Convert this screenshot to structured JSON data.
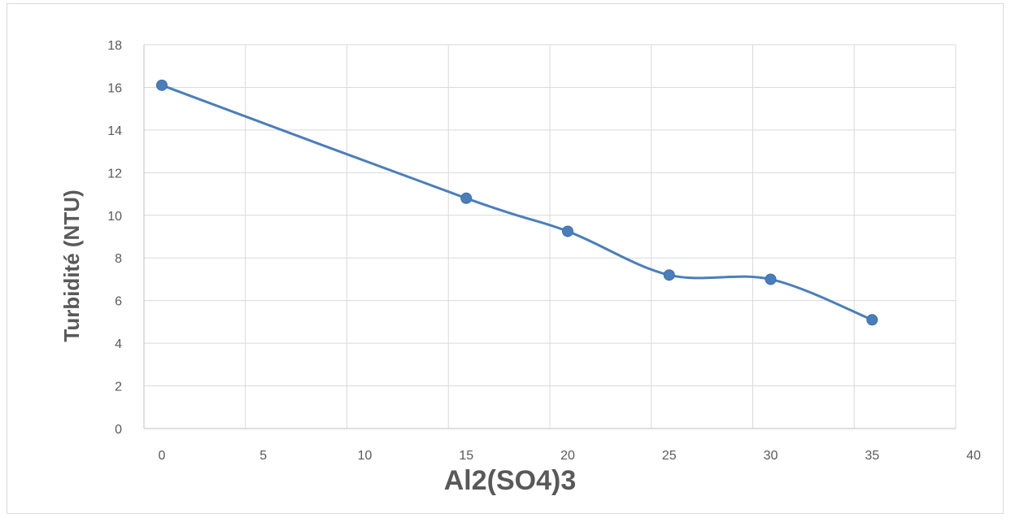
{
  "chart_data": {
    "type": "line",
    "title": "",
    "xlabel": "Al2(SO4)3",
    "ylabel": "Turbidité (NTU)",
    "xlim": [
      0,
      40
    ],
    "ylim": [
      0,
      18
    ],
    "x_ticks": [
      "0",
      "5",
      "10",
      "15",
      "20",
      "25",
      "30",
      "35",
      "40"
    ],
    "y_ticks": [
      "0",
      "2",
      "4",
      "6",
      "8",
      "10",
      "12",
      "14",
      "16",
      "18"
    ],
    "grid": true,
    "legend": "none",
    "smooth": true,
    "series": [
      {
        "color": "#4a7ebb",
        "x": [
          0,
          15,
          20,
          25,
          30,
          35
        ],
        "y": [
          16.1,
          10.8,
          9.25,
          7.2,
          7.0,
          5.1
        ]
      }
    ]
  }
}
